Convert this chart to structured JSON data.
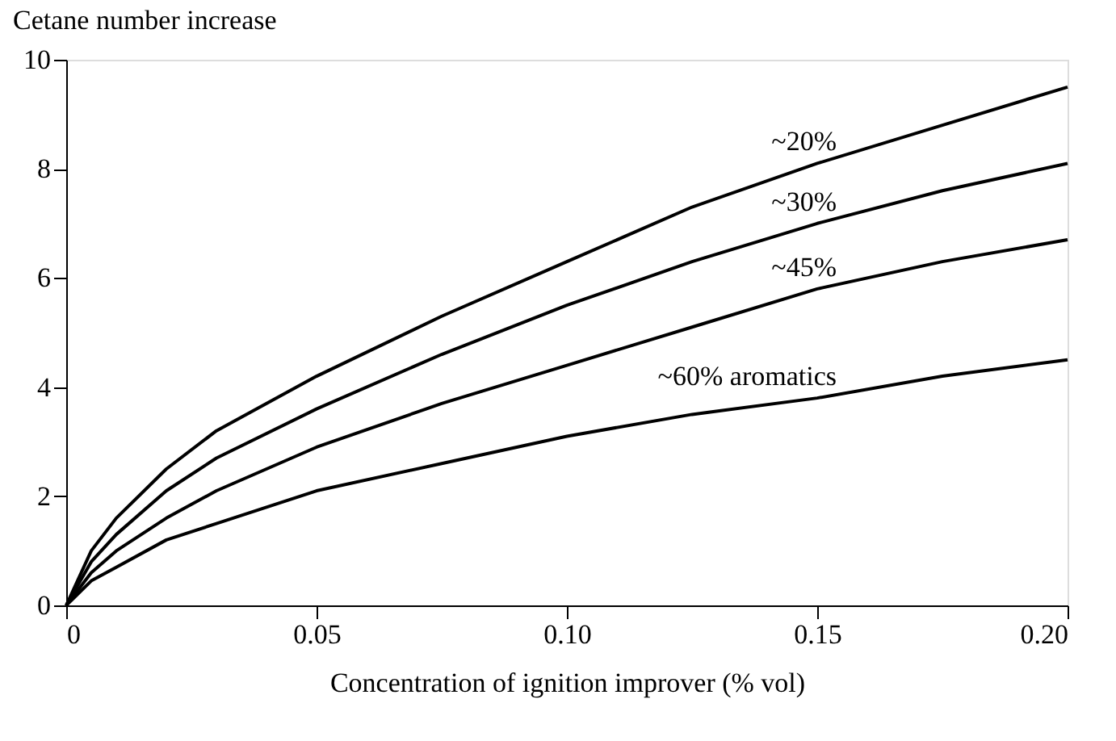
{
  "chart_data": {
    "type": "line",
    "ylabel": "Cetane number increase",
    "xlabel": "Concentration of ignition improver (% vol)",
    "x": [
      0,
      0.005,
      0.01,
      0.02,
      0.03,
      0.05,
      0.075,
      0.1,
      0.125,
      0.15,
      0.175,
      0.2
    ],
    "series": [
      {
        "name": "~20%",
        "color": "#000000",
        "values": [
          0,
          1.0,
          1.6,
          2.5,
          3.2,
          4.2,
          5.3,
          6.3,
          7.3,
          8.1,
          8.8,
          9.5
        ]
      },
      {
        "name": "~30%",
        "color": "#000000",
        "values": [
          0,
          0.8,
          1.3,
          2.1,
          2.7,
          3.6,
          4.6,
          5.5,
          6.3,
          7.0,
          7.6,
          8.1
        ]
      },
      {
        "name": "~45%",
        "color": "#000000",
        "values": [
          0,
          0.6,
          1.0,
          1.6,
          2.1,
          2.9,
          3.7,
          4.4,
          5.1,
          5.8,
          6.3,
          6.7
        ]
      },
      {
        "name": "~60% aromatics",
        "color": "#000000",
        "values": [
          0,
          0.45,
          0.7,
          1.2,
          1.5,
          2.1,
          2.6,
          3.1,
          3.5,
          3.8,
          4.2,
          4.5
        ]
      }
    ],
    "xlim": [
      0,
      0.2
    ],
    "xticks": [
      0,
      {
        "value": 0.05,
        "label": "0.05"
      },
      {
        "value": 0.1,
        "label": "0.10"
      },
      {
        "value": 0.15,
        "label": "0.15"
      },
      {
        "value": 0.2,
        "label": "0.20"
      }
    ],
    "ylim": [
      0,
      10
    ],
    "yticks": [
      0,
      2,
      4,
      6,
      8,
      10
    ],
    "grid": false,
    "legend": false,
    "marker": "none",
    "line_style": "solid"
  }
}
